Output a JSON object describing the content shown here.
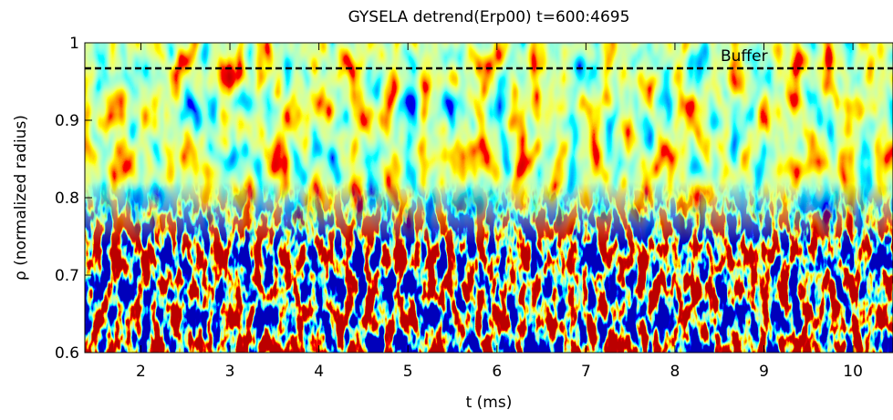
{
  "chart_data": {
    "type": "heatmap",
    "title": "GYSELA detrend(Erp00) t=600:4695",
    "xlabel": "t (ms)",
    "ylabel": "ρ (normalized radius)",
    "xlim": [
      1.37,
      10.45
    ],
    "ylim": [
      0.6,
      1
    ],
    "xticks": [
      2,
      3,
      4,
      5,
      6,
      7,
      8,
      9,
      10
    ],
    "yticks": [
      0.6,
      0.7,
      0.8,
      0.9,
      1
    ],
    "hlines": [
      {
        "value": 0.967,
        "label": "Buffer"
      }
    ]
  }
}
